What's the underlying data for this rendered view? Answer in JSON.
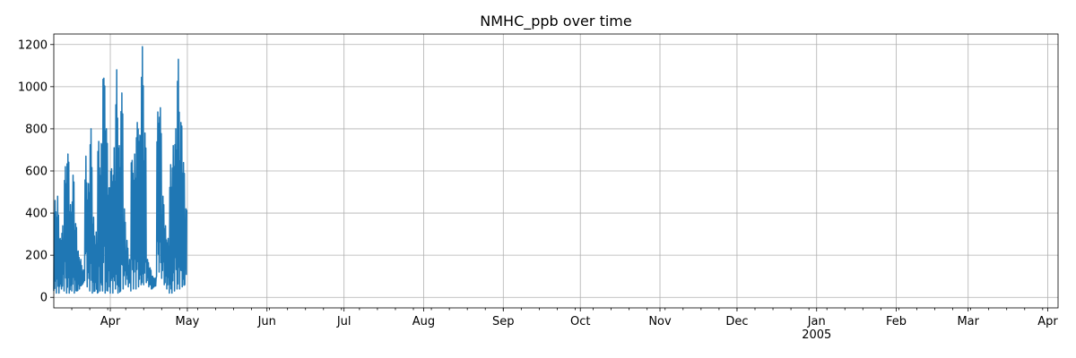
{
  "chart_data": {
    "type": "line",
    "title": "NMHC_ppb over time",
    "xlabel": "",
    "ylabel": "",
    "x_axis_type": "date",
    "xlim": [
      "2004-03-10",
      "2005-04-05"
    ],
    "ylim": [
      -50,
      1250
    ],
    "grid": true,
    "colors": {
      "series": "#1f77b4"
    },
    "y_ticks": [
      0,
      200,
      400,
      600,
      800,
      1000,
      1200
    ],
    "x_ticks": [
      {
        "date": "2004-04-01",
        "label": "Apr"
      },
      {
        "date": "2004-05-01",
        "label": "May"
      },
      {
        "date": "2004-06-01",
        "label": "Jun"
      },
      {
        "date": "2004-07-01",
        "label": "Jul"
      },
      {
        "date": "2004-08-01",
        "label": "Aug"
      },
      {
        "date": "2004-09-01",
        "label": "Sep"
      },
      {
        "date": "2004-10-01",
        "label": "Oct"
      },
      {
        "date": "2004-11-01",
        "label": "Nov"
      },
      {
        "date": "2004-12-01",
        "label": "Dec"
      },
      {
        "date": "2005-01-01",
        "label": "Jan"
      },
      {
        "date": "2005-02-01",
        "label": "Feb"
      },
      {
        "date": "2005-03-01",
        "label": "Mar"
      },
      {
        "date": "2005-04-01",
        "label": "Apr"
      }
    ],
    "x_tick_sublabel": {
      "date": "2005-01-01",
      "label": "2005"
    },
    "series": [
      {
        "x": [
          "2004-03-10",
          "2004-03-11",
          "2004-03-12",
          "2004-03-13",
          "2004-03-14",
          "2004-03-15",
          "2004-03-16",
          "2004-03-17",
          "2004-03-18",
          "2004-03-19",
          "2004-03-20",
          "2004-03-21",
          "2004-03-22",
          "2004-03-23",
          "2004-03-24",
          "2004-03-25",
          "2004-03-26",
          "2004-03-27",
          "2004-03-28",
          "2004-03-29",
          "2004-03-30",
          "2004-03-31",
          "2004-04-01",
          "2004-04-02",
          "2004-04-03",
          "2004-04-04",
          "2004-04-05",
          "2004-04-06",
          "2004-04-07",
          "2004-04-08",
          "2004-04-09",
          "2004-04-10",
          "2004-04-11",
          "2004-04-12",
          "2004-04-13",
          "2004-04-14",
          "2004-04-15",
          "2004-04-16",
          "2004-04-17",
          "2004-04-18",
          "2004-04-19",
          "2004-04-20",
          "2004-04-21",
          "2004-04-22",
          "2004-04-23",
          "2004-04-24",
          "2004-04-25",
          "2004-04-26",
          "2004-04-27",
          "2004-04-28",
          "2004-04-29",
          "2004-04-30"
        ],
        "min": [
          30,
          20,
          20,
          40,
          30,
          20,
          20,
          30,
          20,
          30,
          40,
          60,
          80,
          50,
          30,
          20,
          30,
          20,
          30,
          30,
          20,
          30,
          20,
          20,
          40,
          20,
          30,
          40,
          60,
          50,
          30,
          40,
          40,
          50,
          60,
          60,
          70,
          50,
          40,
          50,
          100,
          120,
          90,
          60,
          40,
          20,
          20,
          30,
          40,
          40,
          50,
          60
        ],
        "max": [
          460,
          480,
          280,
          340,
          620,
          680,
          440,
          580,
          350,
          220,
          180,
          130,
          670,
          540,
          800,
          380,
          310,
          740,
          730,
          1040,
          800,
          520,
          610,
          710,
          1080,
          720,
          970,
          420,
          270,
          180,
          650,
          680,
          830,
          770,
          1190,
          780,
          180,
          140,
          100,
          90,
          880,
          900,
          480,
          340,
          280,
          630,
          720,
          800,
          1130,
          830,
          640,
          420
        ]
      }
    ]
  }
}
